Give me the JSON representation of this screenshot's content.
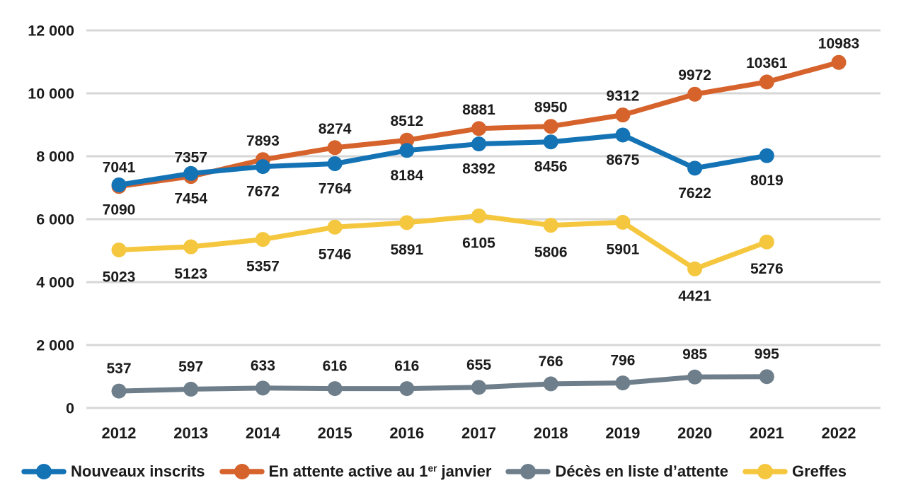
{
  "chart_data": {
    "type": "line",
    "title": "",
    "xlabel": "",
    "ylabel": "",
    "x": [
      "2012",
      "2013",
      "2014",
      "2015",
      "2016",
      "2017",
      "2018",
      "2019",
      "2020",
      "2021",
      "2022"
    ],
    "ylim": [
      0,
      12000
    ],
    "grid": true,
    "legend_position": "bottom",
    "y_ticks": [
      {
        "value": 12000,
        "label": "12 000"
      },
      {
        "value": 10000,
        "label": "10 000"
      },
      {
        "value": 8000,
        "label": "8 000"
      },
      {
        "value": 6000,
        "label": "6 000"
      },
      {
        "value": 4000,
        "label": "4 000"
      },
      {
        "value": 2000,
        "label": "2 000"
      },
      {
        "value": 0,
        "label": "0"
      }
    ],
    "series": [
      {
        "id": "en-attente-active",
        "name": "En attente active au 1er janvier",
        "color": "#D6622C",
        "label_position": "above",
        "label_dy": -20,
        "values": [
          7041,
          7357,
          7893,
          8274,
          8512,
          8881,
          8950,
          9312,
          9972,
          10361,
          10983
        ]
      },
      {
        "id": "nouveaux-inscrits",
        "name": "Nouveaux inscrits",
        "color": "#1373B5",
        "label_position": "below",
        "label_dy": 42,
        "values": [
          7090,
          7454,
          7672,
          7764,
          8184,
          8392,
          8456,
          8675,
          7622,
          8019
        ]
      },
      {
        "id": "greffes",
        "name": "Greffes",
        "color": "#F5C73E",
        "label_position": "below",
        "label_dy": 45,
        "values": [
          5023,
          5123,
          5357,
          5746,
          5891,
          6105,
          5806,
          5901,
          4421,
          5276
        ]
      },
      {
        "id": "deces-liste-attente",
        "name": "Décès en liste d’attente",
        "color": "#6E7F8B",
        "label_position": "above",
        "label_dy": -25,
        "values": [
          537,
          597,
          633,
          616,
          616,
          655,
          766,
          796,
          985,
          995
        ]
      }
    ]
  },
  "legend": {
    "items": [
      {
        "id": "nouveaux-inscrits",
        "color": "#1373B5",
        "label": "Nouveaux inscrits"
      },
      {
        "id": "en-attente-active",
        "color": "#D6622C",
        "label_before_sup": "En attente active au 1",
        "sup": "er",
        "label_after_sup": " janvier"
      },
      {
        "id": "deces-liste-attente",
        "color": "#6E7F8B",
        "label": "Décès en liste d’attente"
      },
      {
        "id": "greffes",
        "color": "#F5C73E",
        "label": "Greffes"
      }
    ]
  }
}
